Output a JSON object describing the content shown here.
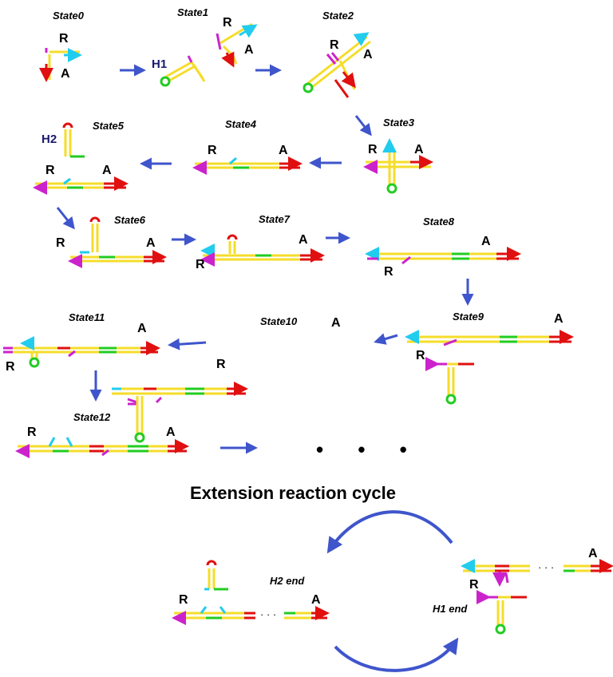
{
  "colors": {
    "yellow": "#f5dd2a",
    "red": "#e01010",
    "green": "#22cc22",
    "magenta": "#cc22cc",
    "cyan": "#22ccee",
    "arrow": "#3f55cc"
  },
  "states": {
    "s0": "State0",
    "s1": "State1",
    "s2": "State2",
    "s3": "State3",
    "s4": "State4",
    "s5": "State5",
    "s6": "State6",
    "s7": "State7",
    "s8": "State8",
    "s9": "State9",
    "s10": "State10",
    "s11": "State11",
    "s12": "State12"
  },
  "letters": {
    "r": "R",
    "a": "A",
    "h1": "H1",
    "h2": "H2"
  },
  "ellipsis": "• • •",
  "small_ellipsis": "· · ·",
  "cycle": {
    "title": "Extension reaction cycle",
    "h2_end": "H2 end",
    "h1_end": "H1 end"
  }
}
